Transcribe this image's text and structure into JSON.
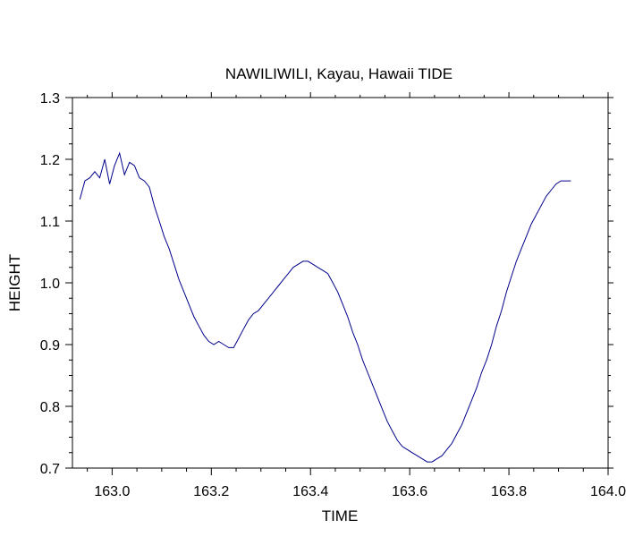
{
  "chart_data": {
    "type": "line",
    "title": "NAWILIWILI, Kayau, Hawaii TIDE",
    "xlabel": "TIME",
    "ylabel": "HEIGHT",
    "xlim": [
      162.92,
      164.0
    ],
    "ylim": [
      0.7,
      1.3
    ],
    "xticks": [
      163.0,
      163.2,
      163.4,
      163.6,
      163.8,
      164.0
    ],
    "xtick_labels": [
      "163.0",
      "163.2",
      "163.4",
      "163.6",
      "163.8",
      "164.0"
    ],
    "yticks": [
      0.7,
      0.8,
      0.9,
      1.0,
      1.1,
      1.2,
      1.3
    ],
    "ytick_labels": [
      "0.7",
      "0.8",
      "0.9",
      "1.0",
      "1.1",
      "1.2",
      "1.3"
    ],
    "grid": false,
    "line_color": "#00008b",
    "series": [
      {
        "x": [
          162.935,
          162.945,
          162.955,
          162.965,
          162.975,
          162.985,
          162.995,
          163.005,
          163.015,
          163.025,
          163.035,
          163.045,
          163.055,
          163.065,
          163.075,
          163.085,
          163.095,
          163.105,
          163.115,
          163.125,
          163.135,
          163.145,
          163.155,
          163.165,
          163.175,
          163.185,
          163.195,
          163.205,
          163.215,
          163.225,
          163.235,
          163.245,
          163.255,
          163.265,
          163.275,
          163.285,
          163.295,
          163.305,
          163.315,
          163.325,
          163.335,
          163.345,
          163.355,
          163.365,
          163.375,
          163.385,
          163.395,
          163.405,
          163.415,
          163.425,
          163.435,
          163.445,
          163.455,
          163.465,
          163.475,
          163.485,
          163.495,
          163.505,
          163.515,
          163.525,
          163.535,
          163.545,
          163.555,
          163.565,
          163.575,
          163.585,
          163.595,
          163.605,
          163.615,
          163.625,
          163.635,
          163.645,
          163.655,
          163.665,
          163.675,
          163.685,
          163.695,
          163.705,
          163.715,
          163.725,
          163.735,
          163.745,
          163.755,
          163.765,
          163.775,
          163.785,
          163.795,
          163.805,
          163.815,
          163.825,
          163.835,
          163.845,
          163.855,
          163.865,
          163.875,
          163.885,
          163.895,
          163.905,
          163.915,
          163.925
        ],
        "y": [
          1.135,
          1.165,
          1.17,
          1.18,
          1.17,
          1.2,
          1.16,
          1.19,
          1.21,
          1.175,
          1.195,
          1.19,
          1.17,
          1.165,
          1.155,
          1.125,
          1.1,
          1.075,
          1.055,
          1.03,
          1.005,
          0.985,
          0.965,
          0.945,
          0.93,
          0.915,
          0.905,
          0.9,
          0.905,
          0.9,
          0.895,
          0.895,
          0.91,
          0.925,
          0.94,
          0.95,
          0.955,
          0.965,
          0.975,
          0.985,
          0.995,
          1.005,
          1.015,
          1.025,
          1.03,
          1.035,
          1.035,
          1.03,
          1.025,
          1.02,
          1.015,
          1.0,
          0.985,
          0.965,
          0.945,
          0.92,
          0.9,
          0.875,
          0.855,
          0.835,
          0.815,
          0.795,
          0.775,
          0.76,
          0.745,
          0.735,
          0.73,
          0.725,
          0.72,
          0.715,
          0.71,
          0.71,
          0.715,
          0.72,
          0.73,
          0.74,
          0.755,
          0.77,
          0.79,
          0.81,
          0.83,
          0.855,
          0.875,
          0.9,
          0.93,
          0.955,
          0.985,
          1.01,
          1.035,
          1.055,
          1.075,
          1.095,
          1.11,
          1.125,
          1.14,
          1.15,
          1.16,
          1.165,
          1.165,
          1.165
        ]
      }
    ]
  }
}
